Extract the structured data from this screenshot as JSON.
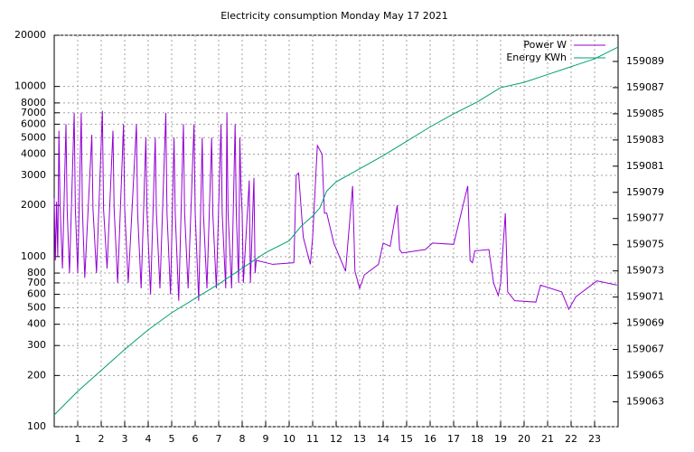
{
  "chart_data": {
    "type": "line",
    "title": "Electricity consumption Monday May 17 2021",
    "xlim": [
      0,
      24
    ],
    "xticks": [
      1,
      2,
      3,
      4,
      5,
      6,
      7,
      8,
      9,
      10,
      11,
      12,
      13,
      14,
      15,
      16,
      17,
      18,
      19,
      20,
      21,
      22,
      23
    ],
    "ylim": [
      100,
      20000
    ],
    "yscale": "log",
    "yticks": [
      100,
      200,
      300,
      400,
      500,
      600,
      700,
      800,
      1000,
      2000,
      3000,
      4000,
      5000,
      6000,
      7000,
      8000,
      10000,
      20000
    ],
    "y2lim": [
      159061.1,
      159091.0
    ],
    "y2ticks": [
      159063,
      159065,
      159067,
      159069,
      159071,
      159073,
      159075,
      159077,
      159079,
      159081,
      159083,
      159085,
      159087,
      159089
    ],
    "grid": true,
    "legend": "top-right",
    "series": [
      {
        "name": "Power W",
        "color": "#9400d3",
        "x": [
          0,
          0.05,
          0.1,
          0.15,
          0.2,
          0.25,
          0.35,
          0.5,
          0.55,
          0.65,
          0.85,
          0.9,
          1.0,
          1.15,
          1.2,
          1.3,
          1.6,
          1.65,
          1.8,
          2.05,
          2.1,
          2.25,
          2.5,
          2.55,
          2.7,
          2.95,
          3.0,
          3.15,
          3.5,
          3.55,
          3.7,
          3.9,
          3.95,
          4.1,
          4.3,
          4.35,
          4.5,
          4.75,
          4.8,
          4.95,
          5.1,
          5.15,
          5.3,
          5.5,
          5.55,
          5.7,
          5.95,
          6.0,
          6.15,
          6.3,
          6.35,
          6.5,
          6.7,
          6.75,
          6.9,
          7.1,
          7.15,
          7.3,
          7.35,
          7.4,
          7.55,
          7.7,
          7.75,
          7.85,
          7.9,
          7.95,
          8.0,
          8.05,
          8.3,
          8.35,
          8.5,
          8.55,
          8.6,
          9.3,
          10.2,
          10.3,
          10.4,
          10.6,
          10.9,
          11.0,
          11.2,
          11.4,
          11.5,
          11.6,
          11.9,
          12.4,
          12.7,
          12.8,
          13.0,
          13.2,
          13.8,
          14.0,
          14.3,
          14.6,
          14.7,
          14.8,
          15.8,
          16.1,
          17.0,
          17.6,
          17.7,
          17.8,
          17.9,
          18.5,
          18.7,
          18.9,
          19.0,
          19.2,
          19.3,
          19.6,
          20.5,
          20.7,
          21.6,
          21.9,
          22.2,
          23.1,
          23.95
        ],
        "values": [
          2200,
          950,
          2100,
          1000,
          5500,
          2000,
          850,
          6000,
          1900,
          800,
          7000,
          1900,
          800,
          7000,
          1900,
          750,
          5200,
          1900,
          800,
          7200,
          1900,
          850,
          5500,
          1900,
          700,
          6000,
          1900,
          700,
          6000,
          1800,
          650,
          5000,
          1800,
          600,
          5000,
          1800,
          650,
          7000,
          1800,
          600,
          5000,
          1800,
          550,
          6000,
          1800,
          650,
          6000,
          1800,
          550,
          5000,
          1800,
          650,
          5000,
          1800,
          650,
          6000,
          1800,
          650,
          7000,
          1800,
          650,
          6000,
          1800,
          700,
          5000,
          2500,
          1800,
          700,
          2800,
          700,
          2900,
          800,
          950,
          900,
          920,
          3000,
          3100,
          1300,
          900,
          1300,
          4500,
          4000,
          1800,
          1800,
          1200,
          820,
          2600,
          820,
          650,
          780,
          900,
          1200,
          1150,
          2000,
          1100,
          1050,
          1100,
          1200,
          1180,
          2600,
          950,
          920,
          1080,
          1100,
          700,
          590,
          700,
          1800,
          620,
          550,
          540,
          680,
          620,
          490,
          580,
          720,
          680
        ]
      },
      {
        "name": "Energy KWh",
        "color": "#009e73",
        "axis": "y2",
        "x": [
          0,
          1,
          2,
          3,
          4,
          5,
          6,
          7,
          8,
          8.5,
          9,
          10,
          10.5,
          11,
          11.3,
          11.6,
          12,
          13,
          14,
          15,
          16,
          17,
          18,
          19,
          20,
          21,
          22,
          23,
          24
        ],
        "values": [
          159062.0,
          159063.8,
          159065.4,
          159067.0,
          159068.5,
          159069.8,
          159070.9,
          159072.0,
          159073.2,
          159073.8,
          159074.4,
          159075.3,
          159076.4,
          159077.2,
          159077.8,
          159079.1,
          159079.8,
          159080.8,
          159081.8,
          159082.9,
          159084.0,
          159085.0,
          159085.9,
          159087.0,
          159087.4,
          159088.0,
          159088.6,
          159089.2,
          159090.1
        ]
      }
    ]
  }
}
